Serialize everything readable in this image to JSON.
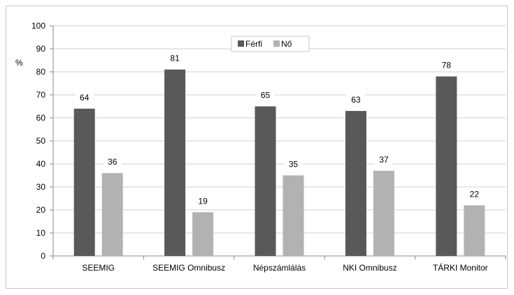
{
  "chart_data": {
    "type": "bar",
    "categories": [
      "SEEMIG",
      "SEEMIG Omnibusz",
      "Népszámlálás",
      "NKI Omnibusz",
      "TÁRKI Monitor"
    ],
    "series": [
      {
        "name": "Férfi",
        "values": [
          64,
          81,
          65,
          63,
          78
        ],
        "color": "#595959"
      },
      {
        "name": "Nő",
        "values": [
          36,
          19,
          35,
          37,
          22
        ],
        "color": "#b2b2b2"
      }
    ],
    "ylabel": "%",
    "ylim": [
      0,
      100
    ],
    "yticks": [
      0,
      10,
      20,
      30,
      40,
      50,
      60,
      70,
      80,
      90,
      100
    ],
    "grid": true,
    "legend": "top-center"
  }
}
